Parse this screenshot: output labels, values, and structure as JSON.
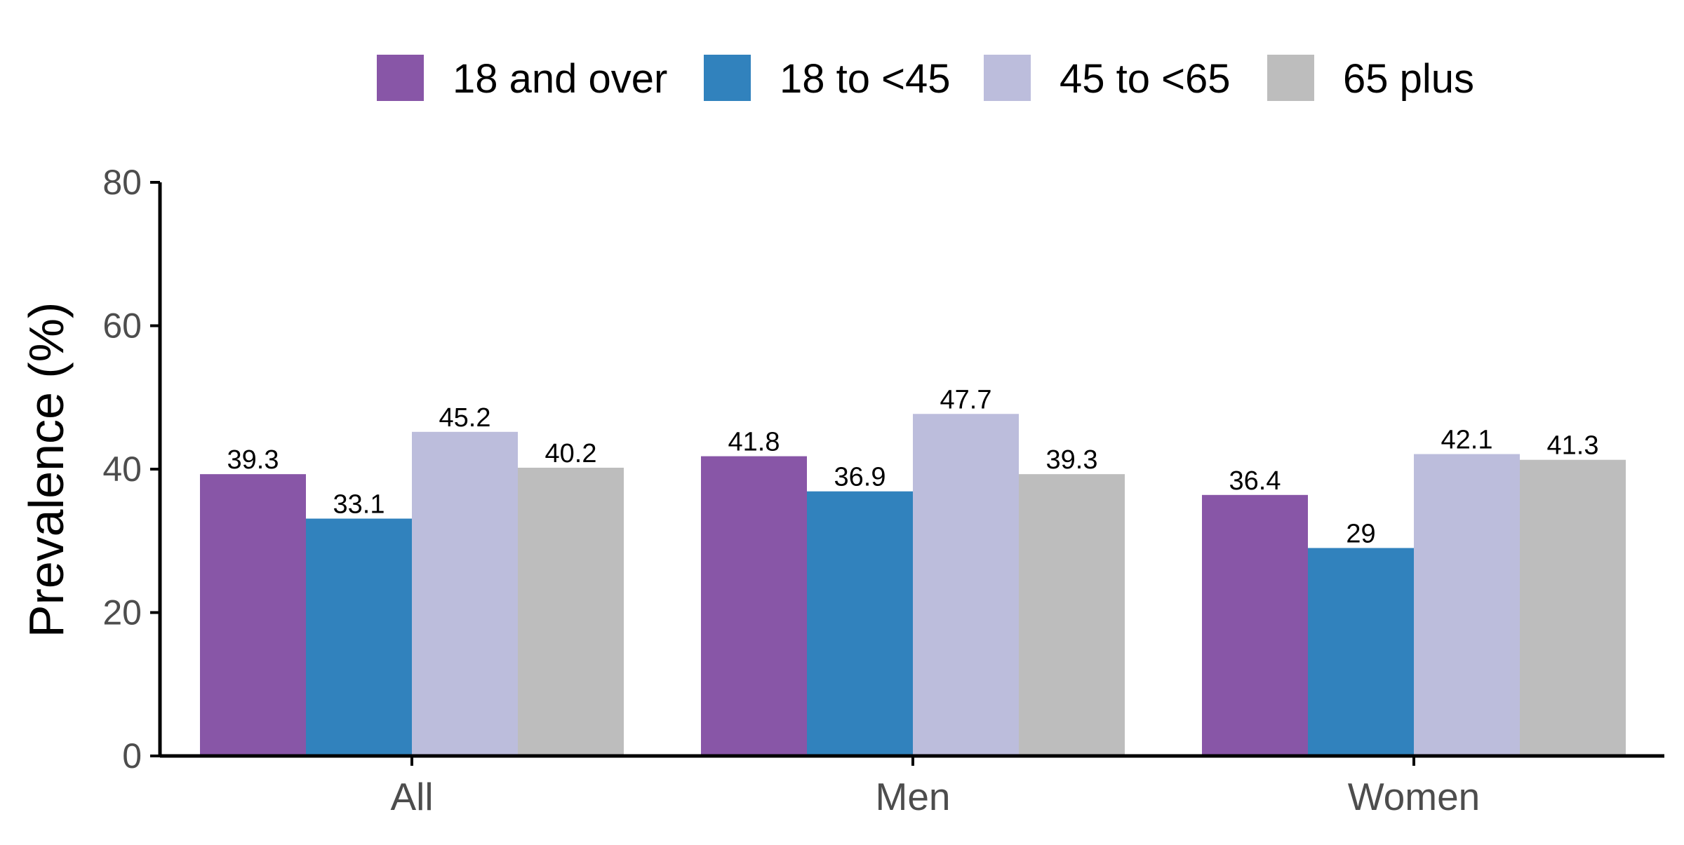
{
  "chart_data": {
    "type": "bar",
    "title": "",
    "xlabel": "",
    "ylabel": "Prevalence (%)",
    "ylim": [
      0,
      80
    ],
    "yticks": [
      0,
      20,
      40,
      60,
      80
    ],
    "grid": false,
    "legend_position": "top",
    "categories": [
      "All",
      "Men",
      "Women"
    ],
    "series": [
      {
        "name": "18 and over",
        "color": "#8856a7",
        "values": [
          39.3,
          41.8,
          36.4
        ],
        "labels": [
          "39.3",
          "41.8",
          "36.4"
        ]
      },
      {
        "name": "18 to <45",
        "color": "#3182bd",
        "values": [
          33.1,
          36.9,
          29
        ],
        "labels": [
          "33.1",
          "36.9",
          "29"
        ]
      },
      {
        "name": "45 to <65",
        "color": "#bcbddc",
        "values": [
          45.2,
          47.7,
          42.1
        ],
        "labels": [
          "45.2",
          "47.7",
          "42.1"
        ]
      },
      {
        "name": "65 plus",
        "color": "#bdbdbd",
        "values": [
          40.2,
          39.3,
          41.3
        ],
        "labels": [
          "40.2",
          "39.3",
          "41.3"
        ]
      }
    ]
  }
}
